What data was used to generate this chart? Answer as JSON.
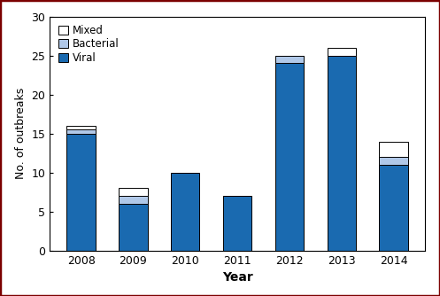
{
  "years": [
    "2008",
    "2009",
    "2010",
    "2011",
    "2012",
    "2013",
    "2014"
  ],
  "viral": [
    15,
    6,
    10,
    7,
    24,
    25,
    11
  ],
  "bacterial": [
    0.5,
    1,
    0,
    0,
    1,
    0,
    1
  ],
  "mixed": [
    0.5,
    1,
    0,
    0,
    0,
    1,
    2
  ],
  "color_viral": "#1a6ab0",
  "color_bacterial": "#b0c8e8",
  "color_mixed": "#ffffff",
  "bar_edgecolor": "#000000",
  "figure_border_color": "#7b0000",
  "ylim": [
    0,
    30
  ],
  "yticks": [
    0,
    5,
    10,
    15,
    20,
    25,
    30
  ],
  "xlabel": "Year",
  "ylabel": "No. of outbreaks",
  "bar_width": 0.55,
  "tick_fontsize": 9,
  "label_fontsize": 10,
  "legend_fontsize": 8.5
}
